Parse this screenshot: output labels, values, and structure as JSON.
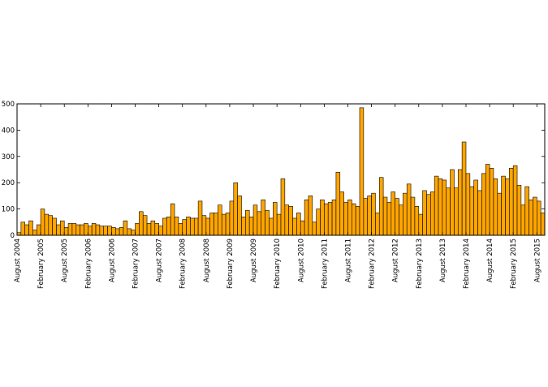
{
  "chart_data": {
    "type": "bar",
    "title": "",
    "xlabel": "",
    "ylabel": "",
    "ylim": [
      0,
      500
    ],
    "yticks": [
      0,
      100,
      200,
      300,
      400,
      500
    ],
    "grid": false,
    "legend": "none",
    "bar_color": "#FFA500",
    "edge_color": "#000000",
    "start_month": "August 2004",
    "xtick_labels": [
      {
        "index": 0,
        "label": "August 2004"
      },
      {
        "index": 6,
        "label": "February 2005"
      },
      {
        "index": 12,
        "label": "August 2005"
      },
      {
        "index": 18,
        "label": "February 2006"
      },
      {
        "index": 24,
        "label": "August 2006"
      },
      {
        "index": 30,
        "label": "February 2007"
      },
      {
        "index": 36,
        "label": "August 2007"
      },
      {
        "index": 42,
        "label": "February 2008"
      },
      {
        "index": 48,
        "label": "August 2008"
      },
      {
        "index": 54,
        "label": "February 2009"
      },
      {
        "index": 60,
        "label": "August 2009"
      },
      {
        "index": 66,
        "label": "February 2010"
      },
      {
        "index": 72,
        "label": "August 2010"
      },
      {
        "index": 78,
        "label": "February 2011"
      },
      {
        "index": 84,
        "label": "August 2011"
      },
      {
        "index": 90,
        "label": "February 2012"
      },
      {
        "index": 96,
        "label": "August 2012"
      },
      {
        "index": 102,
        "label": "February 2013"
      },
      {
        "index": 108,
        "label": "August 2013"
      },
      {
        "index": 114,
        "label": "February 2014"
      },
      {
        "index": 120,
        "label": "August 2014"
      },
      {
        "index": 126,
        "label": "February 2015"
      },
      {
        "index": 132,
        "label": "August 2015"
      }
    ],
    "values": [
      10,
      50,
      40,
      55,
      20,
      40,
      100,
      80,
      75,
      65,
      40,
      55,
      30,
      45,
      45,
      40,
      40,
      45,
      35,
      45,
      40,
      35,
      35,
      35,
      30,
      25,
      30,
      55,
      25,
      20,
      45,
      90,
      75,
      45,
      55,
      45,
      35,
      65,
      70,
      120,
      70,
      45,
      60,
      70,
      65,
      65,
      130,
      75,
      65,
      85,
      85,
      115,
      80,
      85,
      130,
      200,
      150,
      70,
      95,
      70,
      115,
      90,
      135,
      95,
      65,
      125,
      80,
      215,
      115,
      110,
      65,
      85,
      55,
      135,
      150,
      50,
      100,
      135,
      120,
      125,
      135,
      240,
      165,
      125,
      135,
      120,
      110,
      485,
      140,
      150,
      160,
      85,
      220,
      145,
      125,
      165,
      140,
      115,
      160,
      195,
      145,
      110,
      80,
      170,
      155,
      165,
      225,
      215,
      210,
      180,
      250,
      180,
      250,
      355,
      235,
      185,
      210,
      170,
      235,
      270,
      255,
      215,
      160,
      225,
      215,
      255,
      265,
      190,
      115,
      185,
      135,
      145,
      130,
      85
    ]
  }
}
